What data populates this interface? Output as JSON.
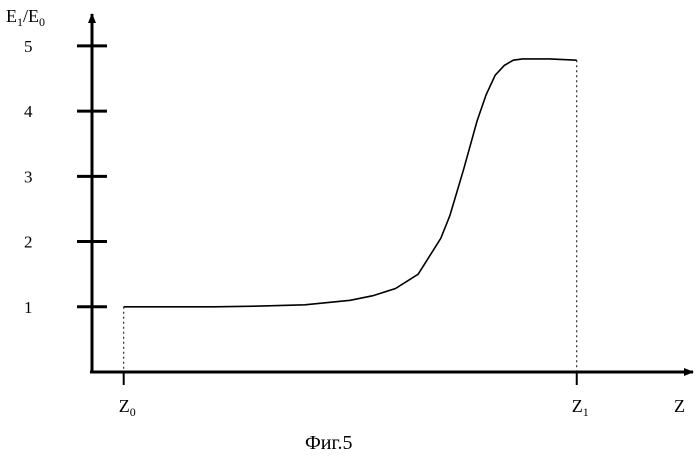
{
  "chart_data": {
    "type": "line",
    "ylabel": {
      "main": "E",
      "sub1": "1",
      "sep": "/E",
      "sub2": "0"
    },
    "xlabel": "Z",
    "y_ticks": [
      "1",
      "2",
      "3",
      "4",
      "5"
    ],
    "x_marks": [
      {
        "main": "Z",
        "sub": "0",
        "x": 0
      },
      {
        "main": "Z",
        "sub": "1",
        "x": 1
      }
    ],
    "xlim": [
      -0.07,
      1.25
    ],
    "ylim": [
      0,
      5.55
    ],
    "series": [
      {
        "x": [
          0,
          0.1,
          0.2,
          0.3,
          0.4,
          0.5,
          0.55,
          0.6,
          0.65,
          0.7,
          0.72,
          0.75,
          0.78,
          0.8,
          0.82,
          0.84,
          0.86,
          0.88,
          0.9,
          0.94,
          1
        ],
        "values": [
          1,
          1,
          1,
          1.01,
          1.03,
          1.1,
          1.17,
          1.28,
          1.5,
          2.05,
          2.4,
          3.1,
          3.85,
          4.25,
          4.55,
          4.7,
          4.78,
          4.8,
          4.8,
          4.8,
          4.78
        ]
      }
    ]
  },
  "caption": "Фиг.5"
}
